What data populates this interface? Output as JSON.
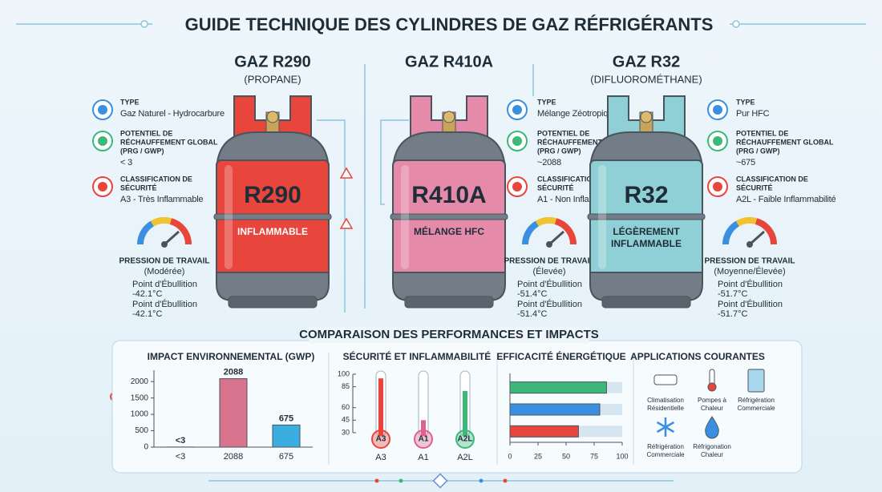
{
  "header": {
    "title": "GUIDE TECHNIQUE DES CYLINDRES DE GAZ RÉFRIGÉRANTS"
  },
  "gases": [
    {
      "name": "GAZ R290",
      "subtitle": "(PROPANE)",
      "cylinder_label": "R290",
      "band_label": "INFLAMMABLE",
      "color": "#e8453c",
      "specs": [
        {
          "label": [
            "TYPE"
          ],
          "value": "Gaz Naturel - Hydrocarbure"
        },
        {
          "label": [
            "POTENTIEL DE",
            "RÉCHAUFFEMENT GLOBAL",
            "(PRG / GWP)"
          ],
          "value": "< 3"
        },
        {
          "label": [
            "CLASSIFICATION DE",
            "SÉCURITÉ"
          ],
          "value": "A3 - Très Inflammable"
        }
      ],
      "pressure": {
        "label": "PRESSION DE TRAVAIL",
        "level": "(Modérée)",
        "boiling": [
          {
            "label": "Point d'Ébullition",
            "value": "-42.1°C"
          },
          {
            "label": "Point d'Ébullition",
            "value": "-42.1°C"
          }
        ]
      }
    },
    {
      "name": "GAZ R410A",
      "cylinder_label": "R410A",
      "band_label": "MÉLANGE HFC",
      "color": "#e58aa9",
      "specs": [
        {
          "label": [
            "TYPE"
          ],
          "value": "Mélange Zéotropique"
        },
        {
          "label": [
            "POTENTIEL DE",
            "RÉCHAUFFEMENT GLOBAL",
            "(PRG / GWP)"
          ],
          "value": "~2088"
        },
        {
          "label": [
            "CLASSIFICATION DE",
            "SÉCURITÉ"
          ],
          "value": "A1 - Non Inflammable"
        }
      ],
      "pressure": {
        "label": "PRESSION DE TRAVAIL",
        "level": "(Élevée)",
        "boiling": [
          {
            "label": "Point d'Ébullition",
            "value": "-51.4°C"
          },
          {
            "label": "Point d'Ébullition",
            "value": "-51.4°C"
          }
        ]
      }
    },
    {
      "name": "GAZ R32",
      "subtitle": "(DIFLUOROMÉTHANE)",
      "cylinder_label": "R32",
      "band_label": "LÉGÈREMENT INFLAMMABLE",
      "color": "#8fd0d6",
      "specs": [
        {
          "label": [
            "TYPE"
          ],
          "value": "Pur HFC"
        },
        {
          "label": [
            "POTENTIEL DE",
            "RÉCHAUFFEMENT GLOBAL",
            "(PRG / GWP)"
          ],
          "value": "~675"
        },
        {
          "label": [
            "CLASSIFICATION DE",
            "SÉCURITÉ"
          ],
          "value": "A2L - Faible Inflammabilité"
        }
      ],
      "pressure": {
        "label": "PRESSION DE TRAVAIL",
        "level": "(Moyenne/Élevée)",
        "boiling": [
          {
            "label": "Point d'Ébullition",
            "value": "-51.7°C"
          },
          {
            "label": "Point d'Ébullition",
            "value": "-51.7°C"
          }
        ]
      }
    }
  ],
  "comparison": {
    "title": "COMPARAISON DES PERFORMANCES ET IMPACTS",
    "applications": {
      "title": "APPLICATIONS COURANTES",
      "items": [
        [
          "Climatisation",
          "Résidentielle"
        ],
        [
          "Pompes à",
          "Chaleur"
        ],
        [
          "Réfrigération",
          "Commerciale"
        ],
        [
          "Réfrigération",
          "Commerciale"
        ],
        [
          "Réfrigonation",
          "Chaleur"
        ]
      ]
    }
  },
  "chart_data": [
    {
      "type": "bar",
      "title": "IMPACT ENVIRONNEMENTAL (GWP)",
      "categories": [
        "<3",
        "2088",
        "675"
      ],
      "values": [
        3,
        2088,
        675
      ],
      "value_labels": [
        "<3",
        "2088",
        "675"
      ],
      "colors": [
        "#4caf50",
        "#d9748f",
        "#3aaee0"
      ],
      "ylim": [
        0,
        2200
      ],
      "yticks": [
        0,
        500,
        1000,
        1500,
        2000
      ]
    },
    {
      "type": "thermometer",
      "title": "SÉCURITÉ ET INFLAMMABILITÉ",
      "categories": [
        "A3",
        "A1",
        "A2L"
      ],
      "values": [
        95,
        45,
        80
      ],
      "colors": [
        "#e8453c",
        "#e0608a",
        "#3cb878"
      ],
      "ylim": [
        30,
        100
      ],
      "yticks": [
        30,
        45,
        60,
        85,
        100
      ]
    },
    {
      "type": "hbar",
      "title": "EFFICACITÉ ÉNERGÉTIQUE",
      "values": [
        86,
        80,
        61
      ],
      "colors": [
        "#3cb878",
        "#3a8fe0",
        "#e8453c"
      ],
      "xlim": [
        0,
        100
      ],
      "xticks": [
        0,
        25,
        50,
        75,
        100
      ]
    }
  ]
}
